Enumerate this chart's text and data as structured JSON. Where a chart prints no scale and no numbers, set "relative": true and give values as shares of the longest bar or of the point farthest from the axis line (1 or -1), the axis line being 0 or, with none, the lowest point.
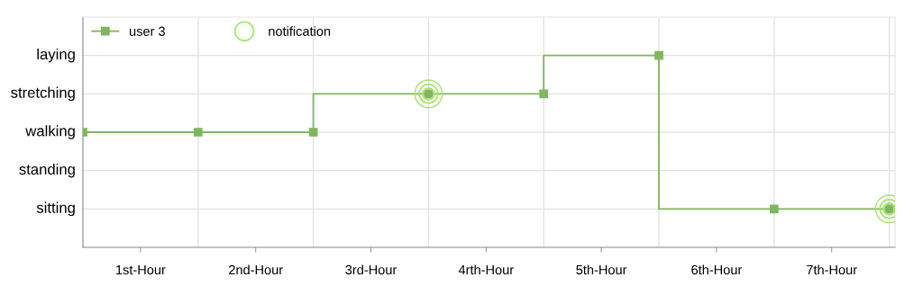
{
  "chart_data": {
    "type": "step",
    "relative": true,
    "x": [
      0,
      1,
      2,
      3,
      4,
      5,
      6,
      7
    ],
    "series": [
      {
        "name": "user 3",
        "color": "#7fb65f",
        "marker": "square",
        "values": [
          0.6,
          0.6,
          0.6,
          0.8,
          0.8,
          1.0,
          0.2,
          0.2
        ]
      },
      {
        "name": "notification",
        "type": "scatter",
        "color": "#a6e36b",
        "marker": "circle",
        "x": [
          3,
          7
        ],
        "values": [
          0.8,
          0.2
        ]
      }
    ],
    "xlim": [
      0,
      7.05
    ],
    "xticks": [
      {
        "value": 0.5,
        "label": "1st-Hour"
      },
      {
        "value": 1,
        "label": null
      },
      {
        "value": 1.5,
        "label": "2nd-Hour"
      },
      {
        "value": 2,
        "label": null
      },
      {
        "value": 2.5,
        "label": "3rd-Hour"
      },
      {
        "value": 3,
        "label": null
      },
      {
        "value": 3.5,
        "label": "4rth-Hour"
      },
      {
        "value": 4,
        "label": null
      },
      {
        "value": 4.5,
        "label": "5th-Hour"
      },
      {
        "value": 5,
        "label": null
      },
      {
        "value": 5.5,
        "label": "6th-Hour"
      },
      {
        "value": 6,
        "label": null
      },
      {
        "value": 6.5,
        "label": "7th-Hour"
      },
      {
        "value": 7,
        "label": null
      }
    ],
    "annotations": [
      "laying",
      "stretching",
      "walking",
      "standing",
      "sitting"
    ],
    "grid": true,
    "legend": "top left"
  }
}
